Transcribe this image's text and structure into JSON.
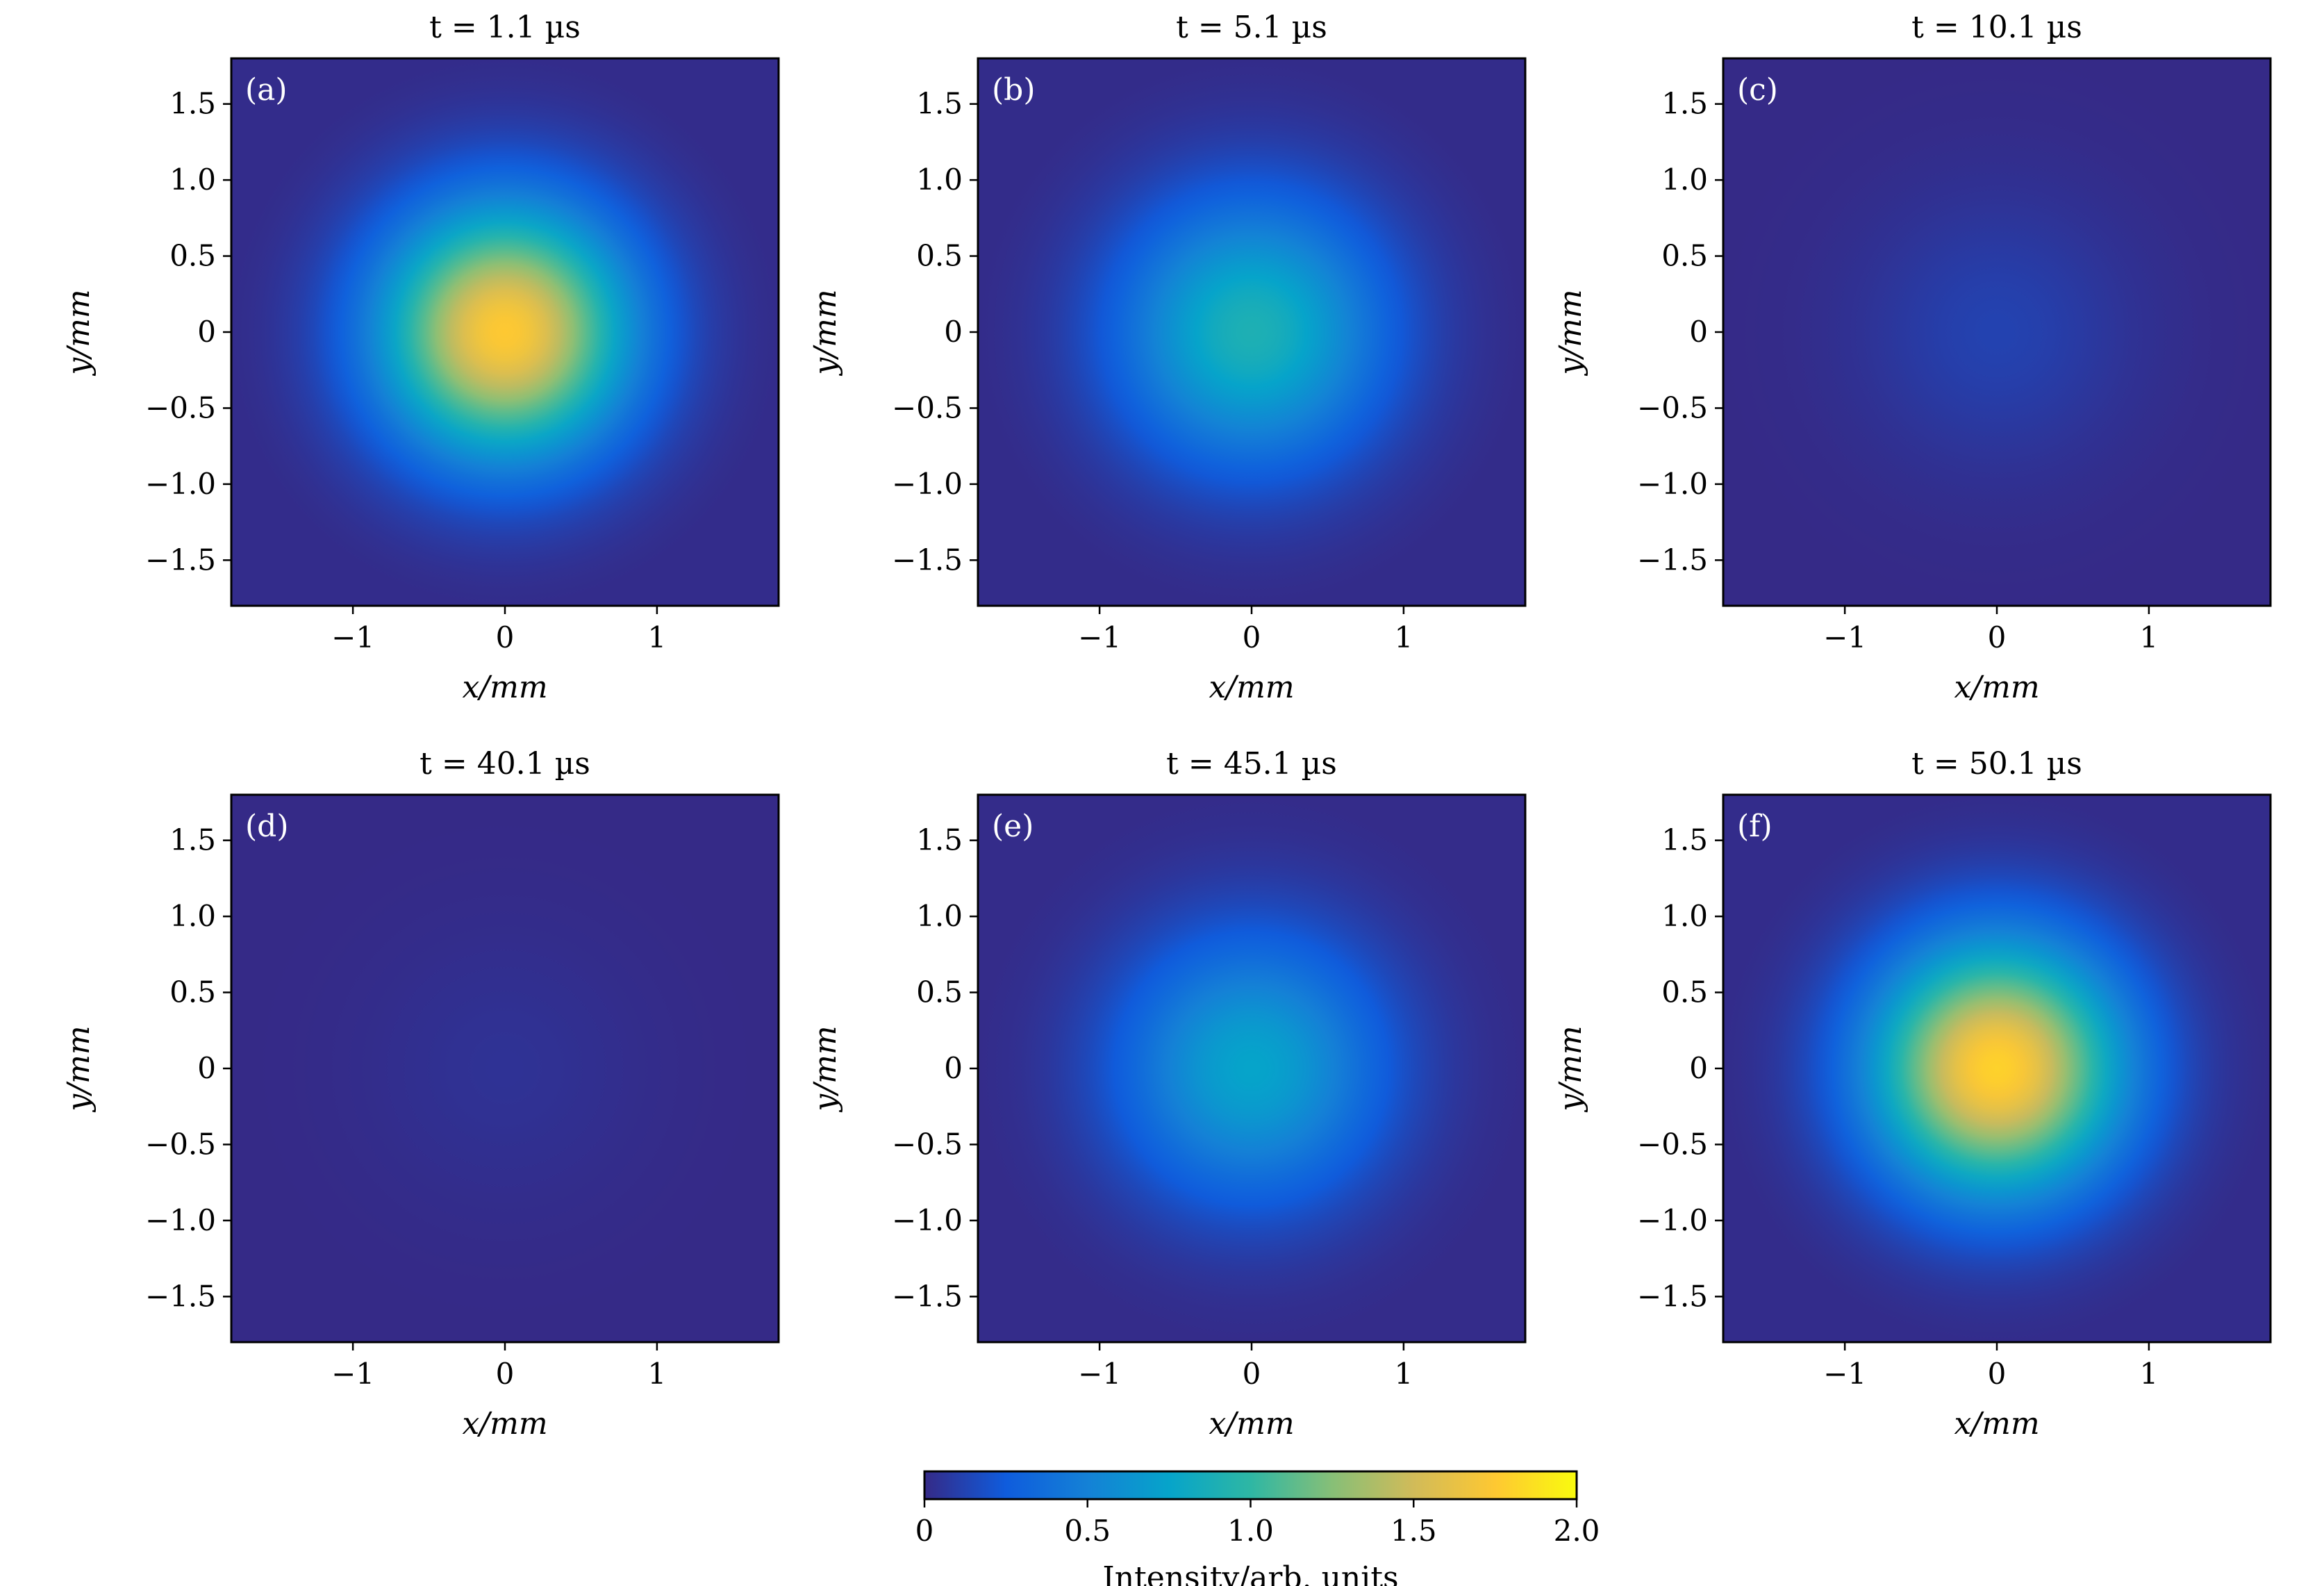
{
  "chart_data": [
    {
      "type": "heatmap",
      "panel_label": "(a)",
      "title": "t = 1.1 µs",
      "xlabel": "x/mm",
      "ylabel": "y/mm",
      "xlim": [
        -1.8,
        1.8
      ],
      "ylim": [
        -1.8,
        1.8
      ],
      "xticks": [
        -1,
        0,
        1
      ],
      "xticklabels": [
        "−1",
        "0",
        "1"
      ],
      "yticks": [
        1.5,
        1.0,
        0.5,
        0,
        -0.5,
        -1.0,
        -1.5
      ],
      "yticklabels": [
        "1.5",
        "1.0",
        "0.5",
        "0",
        "−0.5",
        "−1.0",
        "−1.5"
      ],
      "peak_intensity": 1.75,
      "beam_width_mm": 0.8,
      "center": [
        0,
        0
      ]
    },
    {
      "type": "heatmap",
      "panel_label": "(b)",
      "title": "t = 5.1 µs",
      "xlabel": "x/mm",
      "ylabel": "y/mm",
      "xlim": [
        -1.8,
        1.8
      ],
      "ylim": [
        -1.8,
        1.8
      ],
      "xticks": [
        -1,
        0,
        1
      ],
      "xticklabels": [
        "−1",
        "0",
        "1"
      ],
      "yticks": [
        1.5,
        1.0,
        0.5,
        0,
        -0.5,
        -1.0,
        -1.5
      ],
      "yticklabels": [
        "1.5",
        "1.0",
        "0.5",
        "0",
        "−0.5",
        "−1.0",
        "−1.5"
      ],
      "peak_intensity": 0.9,
      "beam_width_mm": 0.85,
      "center": [
        0,
        0
      ]
    },
    {
      "type": "heatmap",
      "panel_label": "(c)",
      "title": "t = 10.1 µs",
      "xlabel": "x/mm",
      "ylabel": "y/mm",
      "xlim": [
        -1.8,
        1.8
      ],
      "ylim": [
        -1.8,
        1.8
      ],
      "xticks": [
        -1,
        0,
        1
      ],
      "xticklabels": [
        "−1",
        "0",
        "1"
      ],
      "yticks": [
        1.5,
        1.0,
        0.5,
        0,
        -0.5,
        -1.0,
        -1.5
      ],
      "yticklabels": [
        "1.5",
        "1.0",
        "0.5",
        "0",
        "−0.5",
        "−1.0",
        "−1.5"
      ],
      "peak_intensity": 0.12,
      "beam_width_mm": 0.85,
      "center": [
        0,
        0
      ]
    },
    {
      "type": "heatmap",
      "panel_label": "(d)",
      "title": "t = 40.1 µs",
      "xlabel": "x/mm",
      "ylabel": "y/mm",
      "xlim": [
        -1.8,
        1.8
      ],
      "ylim": [
        -1.8,
        1.8
      ],
      "xticks": [
        -1,
        0,
        1
      ],
      "xticklabels": [
        "−1",
        "0",
        "1"
      ],
      "yticks": [
        1.5,
        1.0,
        0.5,
        0,
        -0.5,
        -1.0,
        -1.5
      ],
      "yticklabels": [
        "1.5",
        "1.0",
        "0.5",
        "0",
        "−0.5",
        "−1.0",
        "−1.5"
      ],
      "peak_intensity": 0.04,
      "beam_width_mm": 0.85,
      "center": [
        0,
        0
      ]
    },
    {
      "type": "heatmap",
      "panel_label": "(e)",
      "title": "t = 45.1 µs",
      "xlabel": "x/mm",
      "ylabel": "y/mm",
      "xlim": [
        -1.8,
        1.8
      ],
      "ylim": [
        -1.8,
        1.8
      ],
      "xticks": [
        -1,
        0,
        1
      ],
      "xticklabels": [
        "−1",
        "0",
        "1"
      ],
      "yticks": [
        1.5,
        1.0,
        0.5,
        0,
        -0.5,
        -1.0,
        -1.5
      ],
      "yticklabels": [
        "1.5",
        "1.0",
        "0.5",
        "0",
        "−0.5",
        "−1.0",
        "−1.5"
      ],
      "peak_intensity": 0.75,
      "beam_width_mm": 0.85,
      "center": [
        0,
        0
      ]
    },
    {
      "type": "heatmap",
      "panel_label": "(f)",
      "title": "t = 50.1 µs",
      "xlabel": "x/mm",
      "ylabel": "y/mm",
      "xlim": [
        -1.8,
        1.8
      ],
      "ylim": [
        -1.8,
        1.8
      ],
      "xticks": [
        -1,
        0,
        1
      ],
      "xticklabels": [
        "−1",
        "0",
        "1"
      ],
      "yticks": [
        1.5,
        1.0,
        0.5,
        0,
        -0.5,
        -1.0,
        -1.5
      ],
      "yticklabels": [
        "1.5",
        "1.0",
        "0.5",
        "0",
        "−0.5",
        "−1.0",
        "−1.5"
      ],
      "peak_intensity": 1.8,
      "beam_width_mm": 0.8,
      "center": [
        0,
        0
      ]
    }
  ],
  "colorbar": {
    "label": "Intensity/arb. units",
    "range": [
      0,
      2.0
    ],
    "ticks": [
      0,
      0.5,
      1.0,
      1.5,
      2.0
    ],
    "ticklabels": [
      "0",
      "0.5",
      "1.0",
      "1.5",
      "2.0"
    ],
    "colormap": "parula",
    "colors": [
      "#352a87",
      "#0f5cdd",
      "#1481d6",
      "#06a4ca",
      "#2eb7a4",
      "#87bf77",
      "#d1bb59",
      "#fec832",
      "#f9fb0e"
    ]
  }
}
